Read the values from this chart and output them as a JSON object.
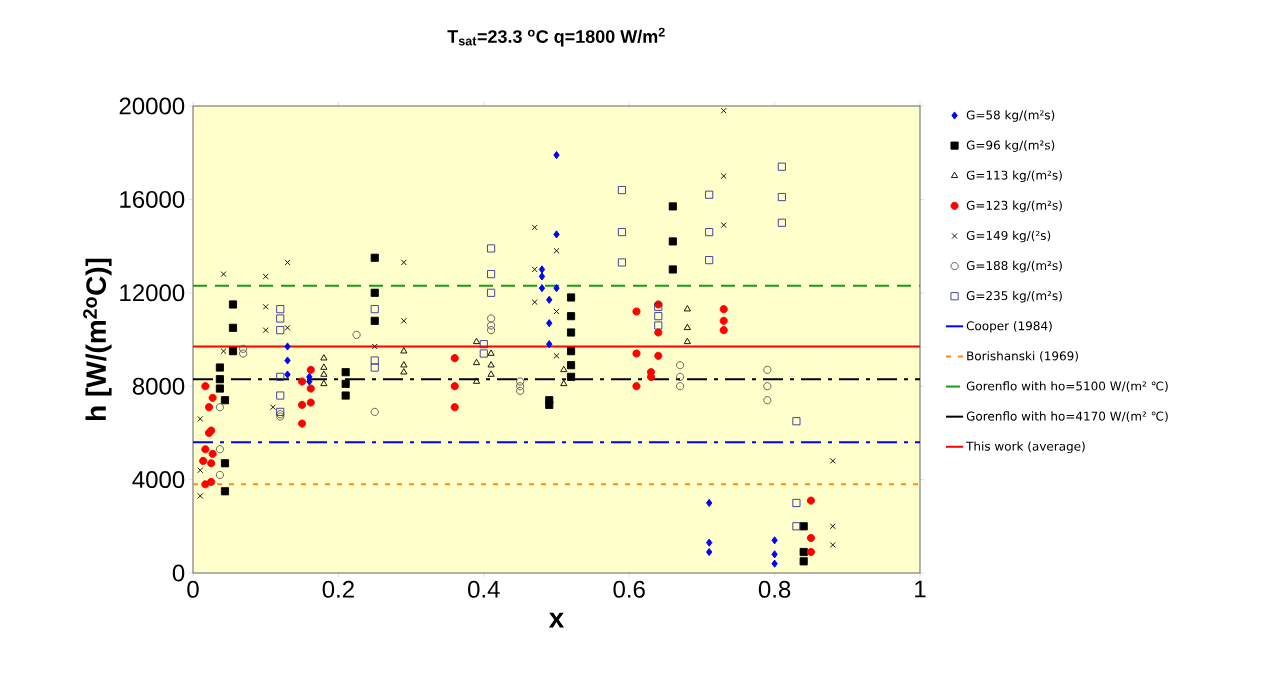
{
  "chart_data": {
    "type": "scatter",
    "title": "T$_{sat}$=23.3 $^{o}$C    q=1800 W/m$^{2}$",
    "xlabel": "x",
    "ylabel": "h [W/(m$^{2o}$C)]",
    "xlim": [
      0,
      1
    ],
    "ylim": [
      0,
      20000
    ],
    "xticks": [
      0,
      0.2,
      0.4,
      0.6,
      0.8,
      1
    ],
    "yticks": [
      0,
      4000,
      8000,
      12000,
      16000,
      20000
    ],
    "legend": "right",
    "series": [
      {
        "name": "G=58 kg/(m²s)",
        "color": "#0000ff",
        "marker": "diamond",
        "x": [
          0.13,
          0.13,
          0.13,
          0.16,
          0.16,
          0.5,
          0.5,
          0.48,
          0.48,
          0.48,
          0.5,
          0.49,
          0.49,
          0.49,
          0.71,
          0.71,
          0.71,
          0.8,
          0.8,
          0.8
        ],
        "values": [
          9700,
          9100,
          8500,
          8400,
          8200,
          17900,
          14500,
          13000,
          12700,
          12200,
          12200,
          11700,
          10700,
          9800,
          3000,
          1300,
          900,
          1400,
          800,
          400
        ]
      },
      {
        "name": "G=96 kg/(m²s)",
        "color": "#000000",
        "marker": "square",
        "x": [
          0.055,
          0.055,
          0.055,
          0.037,
          0.037,
          0.037,
          0.044,
          0.044,
          0.044,
          0.25,
          0.25,
          0.25,
          0.21,
          0.21,
          0.21,
          0.49,
          0.49,
          0.52,
          0.52,
          0.52,
          0.52,
          0.52,
          0.52,
          0.66,
          0.66,
          0.66,
          0.84,
          0.84,
          0.84
        ],
        "values": [
          11500,
          10500,
          9500,
          8800,
          8300,
          7900,
          7400,
          4700,
          3500,
          13500,
          12000,
          10800,
          8600,
          8100,
          7600,
          7400,
          7200,
          11800,
          11000,
          10300,
          9500,
          8900,
          8400,
          15700,
          14200,
          13000,
          2000,
          900,
          500
        ]
      },
      {
        "name": "G=113 kg/(m²s)",
        "color": "#000000",
        "marker": "triangle open",
        "x": [
          0.18,
          0.18,
          0.18,
          0.18,
          0.29,
          0.29,
          0.29,
          0.39,
          0.39,
          0.39,
          0.41,
          0.41,
          0.41,
          0.51,
          0.51,
          0.68,
          0.68,
          0.68
        ],
        "values": [
          9200,
          8800,
          8500,
          8100,
          9500,
          8900,
          8600,
          9900,
          9000,
          8200,
          9400,
          8900,
          8500,
          8700,
          8100,
          11300,
          10500,
          9900
        ]
      },
      {
        "name": "G=123 kg/(m²s)",
        "color": "#ff0000",
        "marker": "circle",
        "x": [
          0.017,
          0.027,
          0.022,
          0.025,
          0.022,
          0.017,
          0.027,
          0.014,
          0.025,
          0.017,
          0.025,
          0.15,
          0.162,
          0.162,
          0.15,
          0.162,
          0.15,
          0.36,
          0.36,
          0.36,
          0.61,
          0.61,
          0.61,
          0.64,
          0.64,
          0.64,
          0.63,
          0.63,
          0.73,
          0.73,
          0.73,
          0.85,
          0.85,
          0.85
        ],
        "values": [
          8000,
          7500,
          7100,
          6100,
          6000,
          5300,
          5100,
          4800,
          4700,
          3800,
          3900,
          8200,
          8700,
          7900,
          7200,
          7300,
          6400,
          9200,
          8000,
          7100,
          11200,
          9400,
          8000,
          11500,
          10300,
          9300,
          8600,
          8400,
          11300,
          10800,
          10400,
          3100,
          1500,
          900
        ]
      },
      {
        "name": "G=149 kg/(²s)",
        "color": "#000000",
        "marker": "cross",
        "x": [
          0.042,
          0.1,
          0.13,
          0.1,
          0.1,
          0.13,
          0.042,
          0.01,
          0.11,
          0.01,
          0.01,
          0.25,
          0.29,
          0.29,
          0.47,
          0.47,
          0.47,
          0.5,
          0.5,
          0.5,
          0.73,
          0.73,
          0.73,
          0.88,
          0.88,
          0.88
        ],
        "values": [
          12800,
          12700,
          13300,
          11400,
          10400,
          10500,
          9500,
          6600,
          7100,
          4400,
          3300,
          9700,
          13300,
          10800,
          14800,
          13000,
          11600,
          13800,
          11200,
          9300,
          19800,
          17000,
          14900,
          4800,
          2000,
          1200
        ]
      },
      {
        "name": "G=188 kg/(m²s)",
        "color": "#555555",
        "marker": "circle open",
        "x": [
          0.069,
          0.069,
          0.037,
          0.037,
          0.037,
          0.225,
          0.25,
          0.12,
          0.12,
          0.41,
          0.41,
          0.41,
          0.45,
          0.45,
          0.45,
          0.67,
          0.67,
          0.67,
          0.79,
          0.79,
          0.79
        ],
        "values": [
          9600,
          9400,
          7100,
          5300,
          4200,
          10200,
          6900,
          6800,
          6700,
          10900,
          10600,
          10400,
          8200,
          8000,
          7800,
          8900,
          8400,
          8000,
          8700,
          8000,
          7400
        ]
      },
      {
        "name": "G=235 kg/(m²s)",
        "color": "#333399",
        "marker": "square open",
        "x": [
          0.12,
          0.12,
          0.12,
          0.12,
          0.12,
          0.12,
          0.25,
          0.25,
          0.25,
          0.41,
          0.41,
          0.41,
          0.4,
          0.4,
          0.59,
          0.59,
          0.59,
          0.64,
          0.64,
          0.64,
          0.71,
          0.71,
          0.71,
          0.81,
          0.81,
          0.81,
          0.83,
          0.83,
          0.83
        ],
        "values": [
          11300,
          10900,
          10400,
          8400,
          7600,
          6900,
          11300,
          9100,
          8800,
          13900,
          12800,
          12000,
          9800,
          9400,
          16400,
          14600,
          13300,
          11400,
          11000,
          10600,
          16200,
          14600,
          13400,
          17400,
          16100,
          15000,
          6500,
          3000,
          2000
        ]
      },
      {
        "name": "Cooper (1984)",
        "type": "line",
        "color": "#0000ff",
        "line_style": "dashdot",
        "x": [
          0,
          1
        ],
        "values": [
          5600,
          5600
        ]
      },
      {
        "name": "Borishanski (1969)",
        "type": "line",
        "color": "#ff8c1a",
        "line_style": "dotted",
        "x": [
          0,
          1
        ],
        "values": [
          3800,
          3800
        ]
      },
      {
        "name": "Gorenflo with ho=5100 W/(m² ℃)",
        "type": "line",
        "color": "#1a9a1a",
        "line_style": "dashed",
        "x": [
          0,
          1
        ],
        "values": [
          12300,
          12300
        ]
      },
      {
        "name": "Gorenflo with ho=4170 W/(m² ℃)",
        "type": "line",
        "color": "#000000",
        "line_style": "dashdot",
        "x": [
          0,
          1
        ],
        "values": [
          8300,
          8300
        ]
      },
      {
        "name": "This work (average)",
        "type": "line",
        "color": "#ff0000",
        "line_style": "solid",
        "x": [
          0,
          1
        ],
        "values": [
          9700,
          9700
        ]
      }
    ]
  }
}
